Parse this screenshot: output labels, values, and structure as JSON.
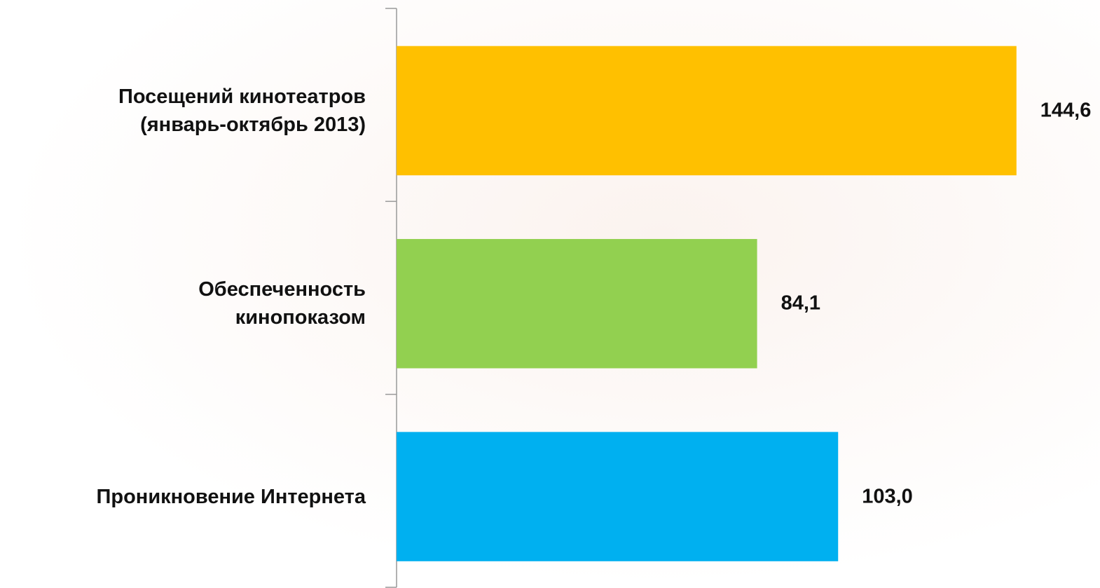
{
  "chart_data": {
    "type": "hbar",
    "categories": [
      "Посещений кинотеатров\n(январь-октябрь 2013)",
      "Обеспеченность\nкинопоказом",
      "Проникновение Интернета"
    ],
    "values": [
      144.6,
      84.1,
      103.0
    ],
    "value_labels": [
      "144,6",
      "84,1",
      "103,0"
    ],
    "colors": [
      "#FFC000",
      "#92D050",
      "#00B0F0"
    ],
    "xlim": [
      0,
      160
    ]
  }
}
